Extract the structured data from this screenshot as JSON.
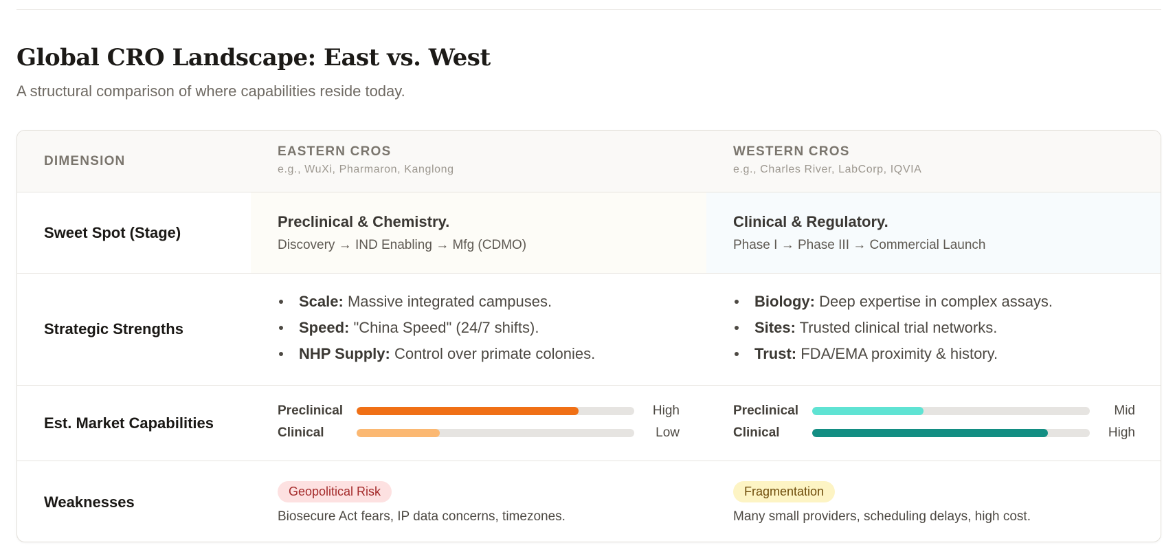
{
  "header": {
    "title": "Global CRO Landscape: East vs. West",
    "subtitle": "A structural comparison of where capabilities reside today."
  },
  "table": {
    "columns": {
      "dimension": "DIMENSION",
      "east": {
        "title": "EASTERN CROS",
        "examples": "e.g., WuXi, Pharmaron, Kanglong"
      },
      "west": {
        "title": "WESTERN CROS",
        "examples": "e.g., Charles River, LabCorp, IQVIA"
      }
    },
    "sweet_spot": {
      "label": "Sweet Spot (Stage)",
      "east": {
        "title": "Preclinical & Chemistry.",
        "path": "Discovery → IND Enabling → Mfg (CDMO)"
      },
      "west": {
        "title": "Clinical & Regulatory.",
        "path": "Phase I → Phase III → Commercial Launch"
      }
    },
    "strengths": {
      "label": "Strategic Strengths",
      "east": [
        {
          "key": "Scale:",
          "text": " Massive integrated campuses."
        },
        {
          "key": "Speed:",
          "text": " \"China Speed\" (24/7 shifts)."
        },
        {
          "key": "NHP Supply:",
          "text": " Control over primate colonies."
        }
      ],
      "west": [
        {
          "key": "Biology:",
          "text": " Deep expertise in complex assays."
        },
        {
          "key": "Sites:",
          "text": " Trusted clinical trial networks."
        },
        {
          "key": "Trust:",
          "text": " FDA/EMA proximity & history."
        }
      ]
    },
    "capabilities": {
      "label": "Est. Market Capabilities",
      "east": [
        {
          "label": "Preclinical",
          "value": "High",
          "level": 0.8,
          "color": "#f07016"
        },
        {
          "label": "Clinical",
          "value": "Low",
          "level": 0.3,
          "color": "#fbb872"
        }
      ],
      "west": [
        {
          "label": "Preclinical",
          "value": "Mid",
          "level": 0.4,
          "color": "#5fe3d3"
        },
        {
          "label": "Clinical",
          "value": "High",
          "level": 0.85,
          "color": "#138e83"
        }
      ]
    },
    "weaknesses": {
      "label": "Weaknesses",
      "east": {
        "badge": "Geopolitical Risk",
        "badge_color": "#fde1e1",
        "text": "Biosecure Act fears, IP data concerns, timezones."
      },
      "west": {
        "badge": "Fragmentation",
        "badge_color": "#fdf4c4",
        "text": "Many small providers, scheduling delays, high cost."
      }
    }
  }
}
